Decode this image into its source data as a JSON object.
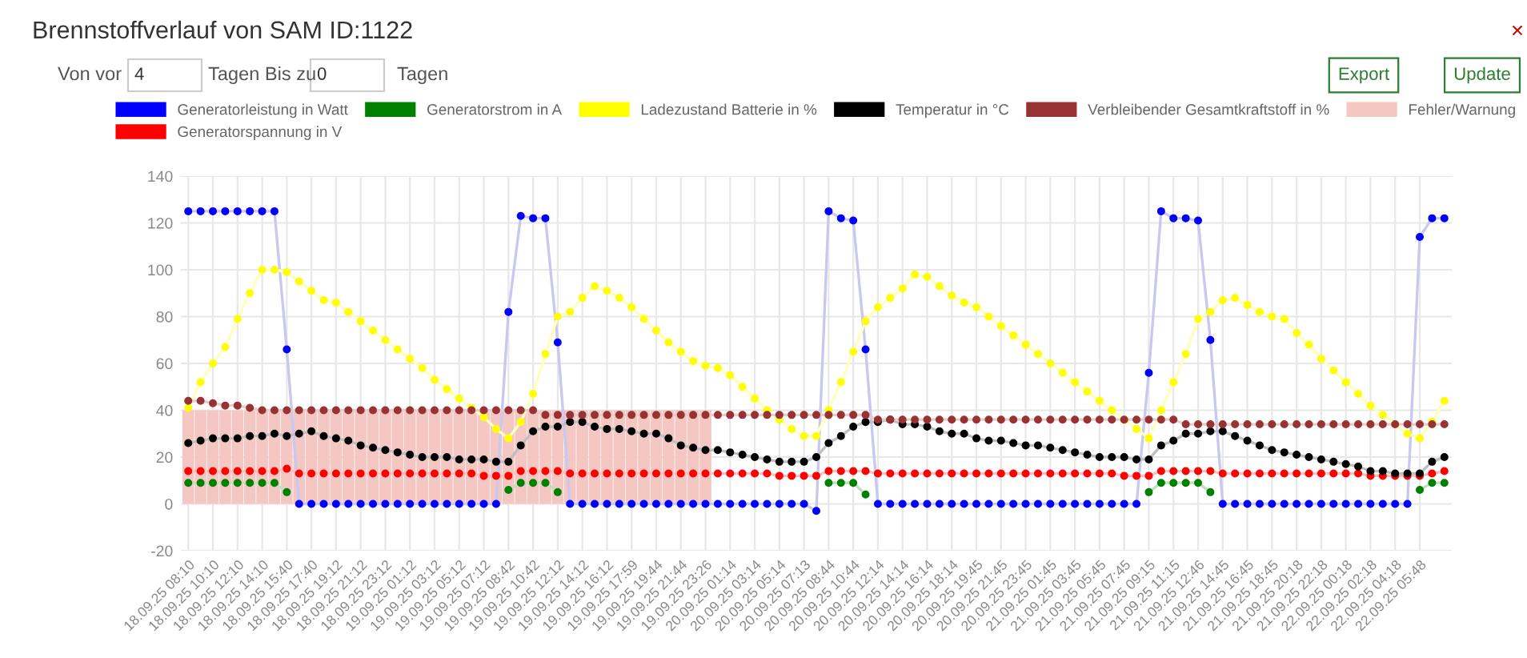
{
  "chart_data": {
    "type": "line",
    "title": "Brennstoffverlauf von SAM ID:1122",
    "annotations": [
      "Von vor",
      "4",
      "Tagen Bis zu",
      "0",
      "Tagen",
      "Export",
      "Update",
      "×"
    ],
    "categories": [
      "18.09.25 08:10",
      null,
      "18.09.25 10:10",
      null,
      "18.09.25 12:10",
      null,
      "18.09.25 14:10",
      null,
      "18.09.25 15:40",
      null,
      "18.09.25 17:40",
      null,
      "18.09.25 19:12",
      null,
      "18.09.25 21:12",
      null,
      "18.09.25 23:12",
      null,
      "19.09.25 01:12",
      null,
      "19.09.25 03:12",
      null,
      "19.09.25 05:12",
      null,
      "19.09.25 07:12",
      null,
      "19.09.25 08:42",
      null,
      "19.09.25 10:42",
      null,
      "19.09.25 12:12",
      null,
      "19.09.25 14:12",
      null,
      "19.09.25 16:12",
      null,
      "19.09.25 17:59",
      null,
      "19.09.25 19:44",
      null,
      "19.09.25 21:44",
      null,
      "19.09.25 23:26",
      null,
      "20.09.25 01:14",
      null,
      "20.09.25 03:14",
      null,
      "20.09.25 05:14",
      null,
      "20.09.25 07:13",
      null,
      "20.09.25 08:44",
      null,
      "20.09.25 10:44",
      null,
      "20.09.25 12:14",
      null,
      "20.09.25 14:14",
      null,
      "20.09.25 16:14",
      null,
      "20.09.25 18:14",
      null,
      "20.09.25 19:45",
      null,
      "20.09.25 21:45",
      null,
      "20.09.25 23:45",
      null,
      "21.09.25 01:45",
      null,
      "21.09.25 03:45",
      null,
      "21.09.25 05:45",
      null,
      "21.09.25 07:45",
      null,
      "21.09.25 09:15",
      null,
      "21.09.25 11:15",
      null,
      "21.09.25 12:46",
      null,
      "21.09.25 14:45",
      null,
      "21.09.25 16:45",
      null,
      "21.09.25 18:45",
      null,
      "21.09.25 20:18",
      null,
      "21.09.25 22:18",
      null,
      "22.09.25 00:18",
      null,
      "22.09.25 02:18",
      null,
      "22.09.25 04:18",
      null,
      "22.09.25 05:48",
      null,
      null
    ],
    "series": [
      {
        "name": "Generatorleistung in Watt",
        "color": "#0000ff",
        "values": [
          125,
          125,
          125,
          125,
          125,
          125,
          125,
          125,
          66,
          0,
          0,
          0,
          0,
          0,
          0,
          0,
          0,
          0,
          0,
          0,
          0,
          0,
          0,
          0,
          0,
          0,
          82,
          123,
          122,
          122,
          69,
          0,
          0,
          0,
          0,
          0,
          0,
          0,
          0,
          0,
          0,
          0,
          0,
          0,
          0,
          0,
          0,
          0,
          0,
          0,
          0,
          -3,
          125,
          122,
          121,
          66,
          0,
          0,
          0,
          0,
          0,
          0,
          0,
          0,
          0,
          0,
          0,
          0,
          0,
          0,
          0,
          0,
          0,
          0,
          0,
          0,
          0,
          0,
          56,
          125,
          122,
          122,
          121,
          70,
          0,
          0,
          0,
          0,
          0,
          0,
          0,
          0,
          0,
          0,
          0,
          0,
          0,
          0,
          0,
          0,
          114,
          122,
          122
        ]
      },
      {
        "name": "Generatorspannung in V",
        "color": "#ff0000",
        "values": [
          14,
          14,
          14,
          14,
          14,
          14,
          14,
          14,
          15,
          13,
          13,
          13,
          13,
          13,
          13,
          13,
          13,
          13,
          13,
          13,
          13,
          13,
          13,
          13,
          12,
          12,
          12,
          14,
          14,
          14,
          14,
          13,
          13,
          13,
          13,
          13,
          13,
          13,
          13,
          13,
          13,
          13,
          13,
          13,
          13,
          13,
          13,
          13,
          12,
          12,
          12,
          12,
          14,
          14,
          14,
          14,
          13,
          13,
          13,
          13,
          13,
          13,
          13,
          13,
          13,
          13,
          13,
          13,
          13,
          13,
          13,
          13,
          13,
          13,
          13,
          13,
          12,
          12,
          12,
          14,
          14,
          14,
          14,
          14,
          13,
          13,
          13,
          13,
          13,
          13,
          13,
          13,
          13,
          13,
          13,
          13,
          12,
          12,
          12,
          12,
          12,
          13,
          14
        ]
      },
      {
        "name": "Generatorstrom in A",
        "color": "#008000",
        "values": [
          9,
          9,
          9,
          9,
          9,
          9,
          9,
          9,
          5,
          null,
          null,
          null,
          null,
          null,
          null,
          null,
          null,
          null,
          null,
          null,
          null,
          null,
          null,
          null,
          null,
          null,
          6,
          9,
          9,
          9,
          5,
          null,
          null,
          null,
          null,
          null,
          null,
          null,
          null,
          null,
          null,
          null,
          null,
          null,
          null,
          null,
          null,
          null,
          null,
          null,
          null,
          null,
          9,
          9,
          9,
          4,
          null,
          null,
          null,
          null,
          null,
          null,
          null,
          null,
          null,
          null,
          null,
          null,
          null,
          null,
          null,
          null,
          null,
          null,
          null,
          null,
          null,
          null,
          5,
          9,
          9,
          9,
          9,
          5,
          null,
          null,
          null,
          null,
          null,
          null,
          null,
          null,
          null,
          null,
          null,
          null,
          null,
          null,
          null,
          null,
          6,
          9,
          9
        ]
      },
      {
        "name": "Ladezustand Batterie in %",
        "color": "#ffff00",
        "values": [
          41,
          52,
          60,
          67,
          79,
          90,
          100,
          100,
          99,
          95,
          91,
          87,
          86,
          82,
          78,
          74,
          70,
          66,
          62,
          58,
          53,
          49,
          45,
          41,
          37,
          32,
          28,
          35,
          47,
          64,
          80,
          82,
          88,
          93,
          91,
          88,
          84,
          79,
          74,
          69,
          65,
          61,
          59,
          58,
          55,
          50,
          45,
          40,
          36,
          32,
          29,
          29,
          40,
          52,
          65,
          78,
          84,
          88,
          92,
          98,
          97,
          93,
          89,
          86,
          84,
          80,
          76,
          72,
          68,
          64,
          60,
          56,
          52,
          48,
          44,
          40,
          36,
          32,
          28,
          40,
          52,
          64,
          79,
          82,
          87,
          88,
          85,
          82,
          80,
          79,
          73,
          68,
          62,
          57,
          52,
          47,
          42,
          38,
          34,
          30,
          28,
          35,
          44
        ]
      },
      {
        "name": "Temperatur in °C",
        "color": "#000000",
        "values": [
          26,
          27,
          28,
          28,
          28,
          29,
          29,
          30,
          29,
          30,
          31,
          29,
          28,
          27,
          25,
          24,
          23,
          22,
          21,
          20,
          20,
          20,
          19,
          19,
          19,
          18,
          18,
          25,
          31,
          33,
          33,
          35,
          35,
          33,
          32,
          32,
          31,
          30,
          30,
          28,
          25,
          24,
          23,
          23,
          22,
          21,
          20,
          19,
          18,
          18,
          18,
          20,
          26,
          29,
          33,
          35,
          35,
          36,
          34,
          34,
          33,
          31,
          30,
          30,
          28,
          27,
          27,
          26,
          25,
          25,
          24,
          23,
          22,
          21,
          20,
          20,
          20,
          19,
          19,
          25,
          27,
          30,
          30,
          31,
          31,
          29,
          27,
          25,
          23,
          22,
          21,
          20,
          19,
          18,
          17,
          16,
          14,
          14,
          13,
          13,
          13,
          18,
          20
        ]
      },
      {
        "name": "Verbleibender Gesamtkraftstoff in %",
        "color": "#993333",
        "values": [
          44,
          44,
          43,
          42,
          42,
          41,
          40,
          40,
          40,
          40,
          40,
          40,
          40,
          40,
          40,
          40,
          40,
          40,
          40,
          40,
          40,
          40,
          40,
          40,
          40,
          40,
          40,
          40,
          40,
          38,
          38,
          38,
          38,
          38,
          38,
          38,
          38,
          38,
          38,
          38,
          38,
          38,
          38,
          38,
          38,
          38,
          38,
          38,
          38,
          38,
          38,
          38,
          38,
          38,
          38,
          38,
          36,
          36,
          36,
          36,
          36,
          36,
          36,
          36,
          36,
          36,
          36,
          36,
          36,
          36,
          36,
          36,
          36,
          36,
          36,
          36,
          36,
          36,
          36,
          36,
          36,
          34,
          34,
          34,
          34,
          34,
          34,
          34,
          34,
          34,
          34,
          34,
          34,
          34,
          34,
          34,
          34,
          34,
          34,
          34,
          34,
          34,
          34
        ]
      },
      {
        "name": "Fehler/Warnung",
        "type": "bar",
        "color": "#f4c7c3",
        "values": [
          40,
          40,
          40,
          40,
          40,
          40,
          40,
          40,
          40,
          40,
          40,
          40,
          40,
          40,
          40,
          40,
          40,
          40,
          40,
          40,
          40,
          40,
          40,
          40,
          40,
          40,
          40,
          40,
          40,
          40,
          40,
          40,
          40,
          40,
          40,
          40,
          40,
          40,
          40,
          40,
          40,
          40,
          40,
          null,
          null,
          null,
          null,
          null,
          null,
          null,
          null,
          null,
          null,
          null,
          null,
          null,
          null,
          null,
          null,
          null,
          null,
          null,
          null,
          null,
          null,
          null,
          null,
          null,
          null,
          null,
          null,
          null,
          null,
          null,
          null,
          null,
          null,
          null,
          null,
          null,
          null,
          null,
          null,
          null,
          null,
          null,
          null,
          null,
          null,
          null,
          null,
          null,
          null,
          null,
          null,
          null,
          null,
          null,
          null,
          null,
          null,
          null,
          null
        ]
      }
    ],
    "ylim": [
      -20,
      140
    ],
    "yticks": [
      -20,
      0,
      20,
      40,
      60,
      80,
      100,
      120,
      140
    ],
    "grid": true,
    "legend": "top",
    "marker": "circle",
    "line_style": "solid"
  }
}
